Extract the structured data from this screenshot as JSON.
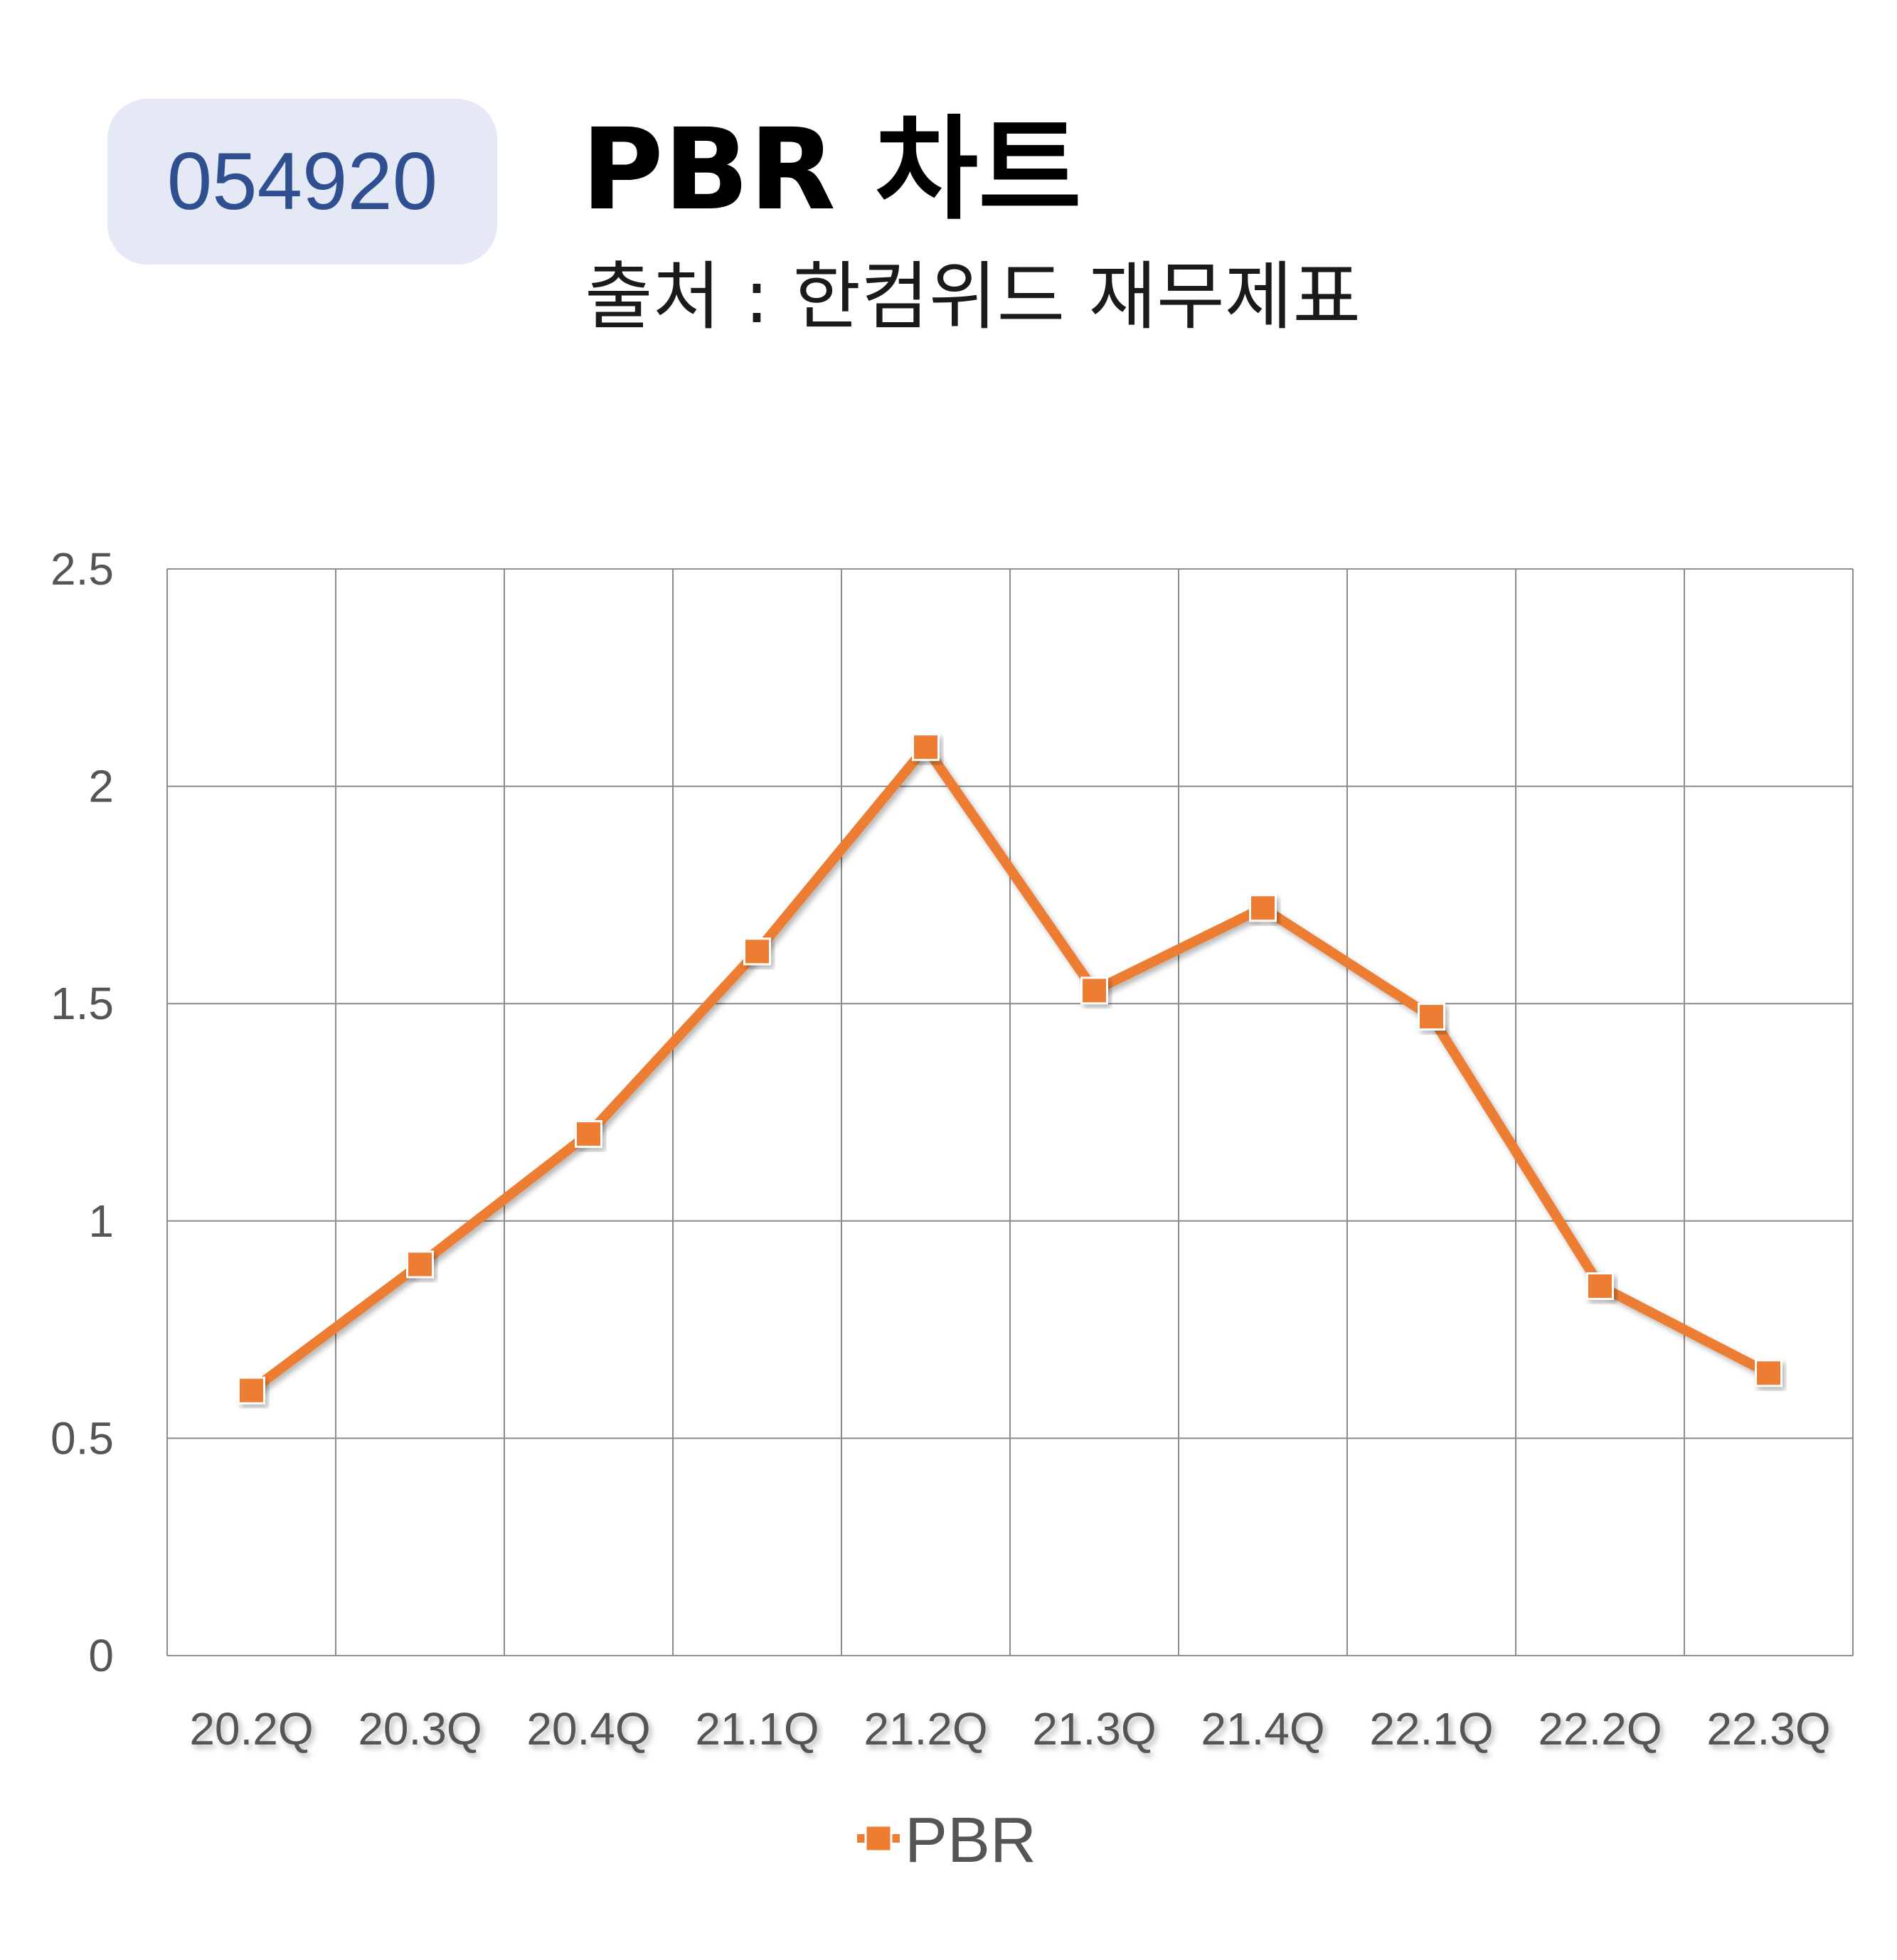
{
  "header": {
    "ticker": "054920",
    "title": "PBR 차트",
    "subtitle": "출처 : 한컴위드 재무제표"
  },
  "colors": {
    "series": "#ed7d31",
    "grid": "#8c8c8c",
    "badge_bg": "#e4e9f5",
    "badge_text": "#2f4f91"
  },
  "chart_data": {
    "type": "line",
    "categories": [
      "20.2Q",
      "20.3Q",
      "20.4Q",
      "21.1Q",
      "21.2Q",
      "21.3Q",
      "21.4Q",
      "22.1Q",
      "22.2Q",
      "22.3Q"
    ],
    "series": [
      {
        "name": "PBR",
        "values": [
          0.61,
          0.9,
          1.2,
          1.62,
          2.09,
          1.53,
          1.72,
          1.47,
          0.85,
          0.65
        ],
        "marker": "square",
        "color": "#ed7d31"
      }
    ],
    "ylim": [
      0,
      2.5
    ],
    "yticks": [
      "0",
      "0.5",
      "1",
      "1.5",
      "2",
      "2.5"
    ],
    "ytick_values": [
      0,
      0.5,
      1,
      1.5,
      2,
      2.5
    ],
    "grid": true,
    "legend": "bottom-center",
    "xlabel": "",
    "ylabel": ""
  }
}
